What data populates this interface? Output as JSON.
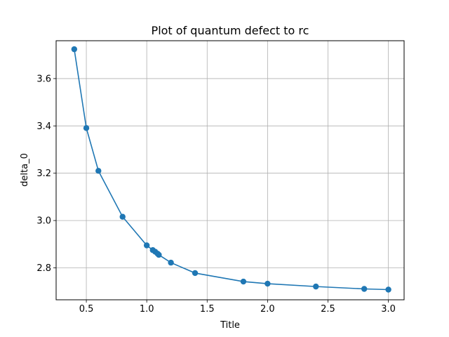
{
  "chart_data": {
    "type": "line",
    "title": "Plot of quantum defect to rc",
    "xlabel": "Title",
    "ylabel": "delta_0",
    "xlim": [
      0.25,
      3.13
    ],
    "ylim": [
      2.665,
      3.76
    ],
    "xticks": [
      0.5,
      1.0,
      1.5,
      2.0,
      2.5,
      3.0
    ],
    "xtick_labels": [
      "0.5",
      "1.0",
      "1.5",
      "2.0",
      "2.5",
      "3.0"
    ],
    "yticks": [
      2.8,
      3.0,
      3.2,
      3.4,
      3.6
    ],
    "ytick_labels": [
      "2.8",
      "3.0",
      "3.2",
      "3.4",
      "3.6"
    ],
    "grid": true,
    "color": "#1f77b4",
    "marker": "circle",
    "series": [
      {
        "x": [
          0.4,
          0.5,
          0.6,
          0.8,
          1.0,
          1.05,
          1.07,
          1.09,
          1.1,
          1.2,
          1.4,
          1.8,
          2.0,
          2.4,
          2.8,
          3.0
        ],
        "y": [
          3.724,
          3.391,
          3.21,
          3.016,
          2.895,
          2.875,
          2.868,
          2.86,
          2.855,
          2.822,
          2.778,
          2.742,
          2.733,
          2.721,
          2.711,
          2.708
        ]
      }
    ]
  }
}
